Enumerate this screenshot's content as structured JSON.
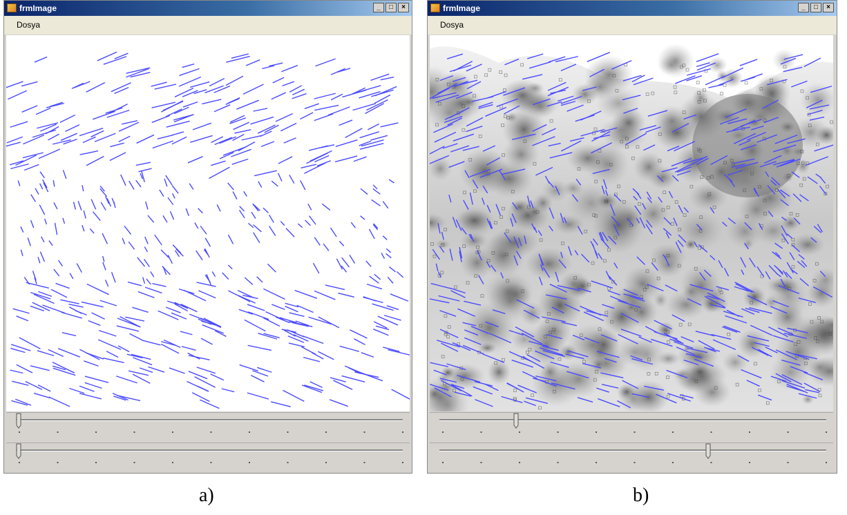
{
  "windows": [
    {
      "title": "frmImage",
      "menu": [
        "Dosya"
      ],
      "caption": "a)"
    },
    {
      "title": "frmImage",
      "menu": [
        "Dosya"
      ],
      "caption": "b)"
    }
  ]
}
